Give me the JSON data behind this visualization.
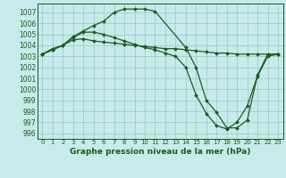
{
  "title": "Graphe pression niveau de la mer (hPa)",
  "background_color": "#c8eaea",
  "grid_color": "#a0cdcd",
  "line_color": "#1a5c1a",
  "xlim": [
    -0.5,
    23.5
  ],
  "ylim": [
    995.5,
    1007.8
  ],
  "yticks": [
    996,
    997,
    998,
    999,
    1000,
    1001,
    1002,
    1003,
    1004,
    1005,
    1006,
    1007
  ],
  "xticks": [
    0,
    1,
    2,
    3,
    4,
    5,
    6,
    7,
    8,
    9,
    10,
    11,
    12,
    13,
    14,
    15,
    16,
    17,
    18,
    19,
    20,
    21,
    22,
    23
  ],
  "line1_x": [
    0,
    1,
    2,
    3,
    4,
    5,
    6,
    7,
    8,
    9,
    10,
    11,
    14,
    15,
    16,
    17,
    18,
    19,
    20,
    21,
    22,
    23
  ],
  "line1_y": [
    1003.2,
    1003.7,
    1004.0,
    1004.8,
    1005.3,
    1005.8,
    1006.2,
    1007.0,
    1007.3,
    1007.3,
    1007.3,
    1007.1,
    1003.8,
    1002.0,
    999.0,
    997.9,
    996.5,
    996.5,
    997.2,
    1001.3,
    1003.2,
    1003.2
  ],
  "line2_x": [
    0,
    1,
    2,
    3,
    4,
    5,
    6,
    7,
    8,
    9,
    10,
    11,
    12,
    13,
    14,
    15,
    16,
    17,
    18,
    19,
    20,
    21,
    22,
    23
  ],
  "line2_y": [
    1003.2,
    1003.6,
    1004.0,
    1004.5,
    1004.6,
    1004.4,
    1004.3,
    1004.2,
    1004.1,
    1004.0,
    1003.9,
    1003.8,
    1003.7,
    1003.7,
    1003.6,
    1003.5,
    1003.4,
    1003.3,
    1003.3,
    1003.2,
    1003.2,
    1003.2,
    1003.2,
    1003.2
  ],
  "line3_x": [
    0,
    1,
    2,
    3,
    4,
    5,
    6,
    7,
    8,
    9,
    10,
    11,
    12,
    13,
    14,
    15,
    16,
    17,
    18,
    19,
    20,
    21,
    22,
    23
  ],
  "line3_y": [
    1003.2,
    1003.6,
    1004.0,
    1004.7,
    1005.2,
    1005.2,
    1005.0,
    1004.7,
    1004.4,
    1004.1,
    1003.8,
    1003.6,
    1003.3,
    1003.0,
    1002.0,
    999.5,
    997.8,
    996.7,
    996.4,
    997.0,
    998.5,
    1001.2,
    1003.0,
    1003.2
  ],
  "ylabel_fontsize": 5.5,
  "xlabel_fontsize": 6.5,
  "xtick_fontsize": 5.0,
  "ytick_fontsize": 5.5
}
